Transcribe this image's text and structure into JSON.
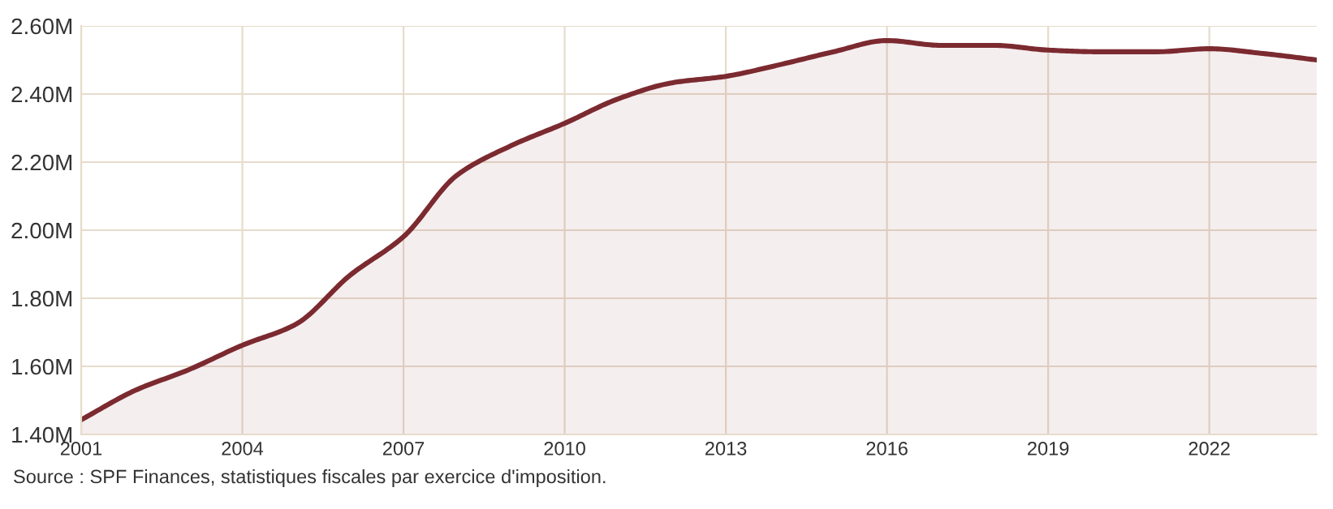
{
  "chart_data": {
    "type": "area",
    "x": [
      2001,
      2002,
      2003,
      2004,
      2005,
      2006,
      2007,
      2008,
      2009,
      2010,
      2011,
      2012,
      2013,
      2014,
      2015,
      2016,
      2017,
      2018,
      2019,
      2020,
      2021,
      2022,
      2023,
      2024
    ],
    "series": [
      {
        "color": "#7b2a30",
        "values": [
          1443000,
          1529000,
          1590000,
          1662000,
          1724000,
          1867000,
          1981000,
          2162000,
          2248000,
          2314000,
          2386000,
          2433000,
          2452000,
          2486000,
          2524000,
          2557000,
          2543000,
          2543000,
          2529000,
          2524000,
          2524000,
          2533000,
          2519000,
          2500000
        ]
      }
    ],
    "xlim": [
      2001,
      2024
    ],
    "xticks": [
      2001,
      2004,
      2007,
      2010,
      2013,
      2016,
      2019,
      2022
    ],
    "ylim": [
      1400000,
      2600000
    ],
    "yticks": [
      {
        "value": 1400000,
        "label": "1.40M"
      },
      {
        "value": 1600000,
        "label": "1.60M"
      },
      {
        "value": 1800000,
        "label": "1.80M"
      },
      {
        "value": 2000000,
        "label": "2.00M"
      },
      {
        "value": 2200000,
        "label": "2.20M"
      },
      {
        "value": 2400000,
        "label": "2.40M"
      },
      {
        "value": 2600000,
        "label": "2.60M"
      }
    ],
    "grid": true,
    "annotations": [
      "Source : SPF Finances, statistiques fiscales par exercice d'imposition."
    ]
  }
}
